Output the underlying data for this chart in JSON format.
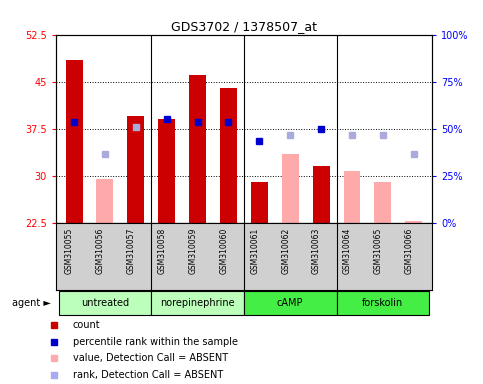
{
  "title": "GDS3702 / 1378507_at",
  "samples": [
    "GSM310055",
    "GSM310056",
    "GSM310057",
    "GSM310058",
    "GSM310059",
    "GSM310060",
    "GSM310061",
    "GSM310062",
    "GSM310063",
    "GSM310064",
    "GSM310065",
    "GSM310066"
  ],
  "group_info": [
    {
      "start": 0,
      "end": 2,
      "label": "untreated",
      "color": "#bbffbb"
    },
    {
      "start": 3,
      "end": 5,
      "label": "norepinephrine",
      "color": "#bbffbb"
    },
    {
      "start": 6,
      "end": 8,
      "label": "cAMP",
      "color": "#44ee44"
    },
    {
      "start": 9,
      "end": 11,
      "label": "forskolin",
      "#44ee44": "#44ee44",
      "color": "#44ee44"
    }
  ],
  "ylim": [
    22.5,
    52.5
  ],
  "ylim_right": [
    0,
    100
  ],
  "yticks_left": [
    22.5,
    30,
    37.5,
    45,
    52.5
  ],
  "yticks_right": [
    0,
    25,
    50,
    75,
    100
  ],
  "ytick_labels_right": [
    "0%",
    "25%",
    "50%",
    "75%",
    "100%"
  ],
  "red_bars": [
    48.5,
    null,
    39.5,
    39.0,
    46.0,
    44.0,
    29.0,
    null,
    31.5,
    null,
    null,
    null
  ],
  "pink_bars": [
    null,
    29.5,
    null,
    null,
    null,
    null,
    null,
    33.5,
    null,
    30.8,
    29.0,
    22.8
  ],
  "blue_squares": [
    38.5,
    null,
    null,
    39.0,
    38.5,
    38.5,
    35.5,
    null,
    37.5,
    null,
    null,
    null
  ],
  "lavender_squares": [
    null,
    33.5,
    37.8,
    null,
    null,
    null,
    null,
    36.5,
    null,
    36.5,
    36.5,
    33.5
  ],
  "bar_bottom": 22.5,
  "group_dividers": [
    2.5,
    5.5,
    8.5
  ],
  "hgrid_vals": [
    30,
    37.5,
    45
  ],
  "legend_items": [
    {
      "color": "#cc0000",
      "label": "count"
    },
    {
      "color": "#0000cc",
      "label": "percentile rank within the sample"
    },
    {
      "color": "#ffaaaa",
      "label": "value, Detection Call = ABSENT"
    },
    {
      "color": "#aaaaee",
      "label": "rank, Detection Call = ABSENT"
    }
  ]
}
